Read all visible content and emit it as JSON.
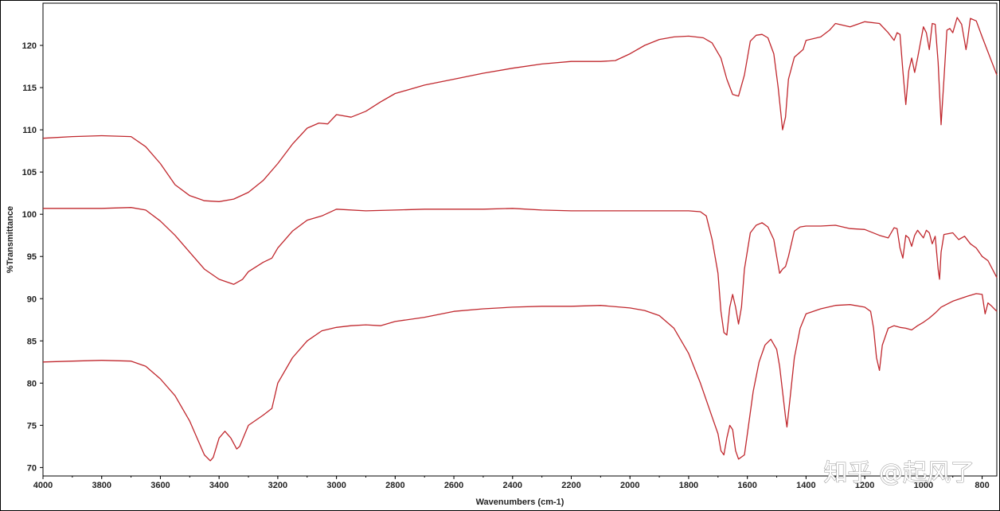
{
  "chart_data": {
    "type": "line",
    "title": "",
    "xlabel": "Wavenumbers (cm-1)",
    "ylabel": "%Transmittance",
    "xlim": [
      4000,
      750
    ],
    "ylim": [
      69,
      125
    ],
    "x_reversed": true,
    "grid": false,
    "legend": "none",
    "line_color": "#c0272d",
    "x_ticks": [
      "4000",
      "3800",
      "3600",
      "3400",
      "3200",
      "3000",
      "2800",
      "2600",
      "2400",
      "2200",
      "2000",
      "1800",
      "1600",
      "1400",
      "1200",
      "1000",
      "800"
    ],
    "y_ticks": [
      "70",
      "75",
      "80",
      "85",
      "90",
      "95",
      "100",
      "105",
      "110",
      "115",
      "120"
    ],
    "series": [
      {
        "points": [
          [
            4000,
            109
          ],
          [
            3900,
            109.2
          ],
          [
            3800,
            109.3
          ],
          [
            3700,
            109.2
          ],
          [
            3650,
            108
          ],
          [
            3600,
            106
          ],
          [
            3550,
            103.5
          ],
          [
            3500,
            102.2
          ],
          [
            3450,
            101.6
          ],
          [
            3400,
            101.5
          ],
          [
            3350,
            101.8
          ],
          [
            3300,
            102.6
          ],
          [
            3250,
            104
          ],
          [
            3200,
            106
          ],
          [
            3150,
            108.3
          ],
          [
            3100,
            110.2
          ],
          [
            3060,
            110.8
          ],
          [
            3030,
            110.7
          ],
          [
            3000,
            111.8
          ],
          [
            2950,
            111.5
          ],
          [
            2900,
            112.2
          ],
          [
            2850,
            113.3
          ],
          [
            2800,
            114.3
          ],
          [
            2700,
            115.3
          ],
          [
            2600,
            116
          ],
          [
            2500,
            116.7
          ],
          [
            2400,
            117.3
          ],
          [
            2300,
            117.8
          ],
          [
            2200,
            118.1
          ],
          [
            2100,
            118.1
          ],
          [
            2050,
            118.2
          ],
          [
            2000,
            119
          ],
          [
            1950,
            120
          ],
          [
            1900,
            120.7
          ],
          [
            1850,
            121
          ],
          [
            1800,
            121.1
          ],
          [
            1750,
            120.9
          ],
          [
            1720,
            120.3
          ],
          [
            1690,
            118.5
          ],
          [
            1670,
            116
          ],
          [
            1650,
            114.2
          ],
          [
            1630,
            114
          ],
          [
            1610,
            116.5
          ],
          [
            1590,
            120.5
          ],
          [
            1570,
            121.2
          ],
          [
            1550,
            121.3
          ],
          [
            1530,
            120.9
          ],
          [
            1510,
            119
          ],
          [
            1495,
            115
          ],
          [
            1480,
            110
          ],
          [
            1470,
            111.5
          ],
          [
            1460,
            116
          ],
          [
            1440,
            118.6
          ],
          [
            1420,
            119.2
          ],
          [
            1410,
            119.5
          ],
          [
            1400,
            120.6
          ],
          [
            1350,
            121
          ],
          [
            1320,
            121.8
          ],
          [
            1300,
            122.6
          ],
          [
            1250,
            122.2
          ],
          [
            1200,
            122.8
          ],
          [
            1150,
            122.6
          ],
          [
            1120,
            121.5
          ],
          [
            1100,
            120.6
          ],
          [
            1090,
            121.5
          ],
          [
            1080,
            121.3
          ],
          [
            1070,
            117
          ],
          [
            1060,
            113
          ],
          [
            1050,
            117
          ],
          [
            1040,
            118.5
          ],
          [
            1030,
            116.8
          ],
          [
            1020,
            118.5
          ],
          [
            1000,
            122.2
          ],
          [
            990,
            121.5
          ],
          [
            980,
            119.5
          ],
          [
            970,
            122.6
          ],
          [
            960,
            122.5
          ],
          [
            950,
            118
          ],
          [
            940,
            110.6
          ],
          [
            930,
            116
          ],
          [
            920,
            121.8
          ],
          [
            910,
            122
          ],
          [
            900,
            121.5
          ],
          [
            885,
            123.3
          ],
          [
            870,
            122.5
          ],
          [
            860,
            120.5
          ],
          [
            855,
            119.5
          ],
          [
            850,
            120.5
          ],
          [
            840,
            123.2
          ],
          [
            820,
            122.9
          ],
          [
            800,
            121
          ],
          [
            750,
            116.5
          ]
        ]
      },
      {
        "points": [
          [
            4000,
            100.7
          ],
          [
            3900,
            100.7
          ],
          [
            3800,
            100.7
          ],
          [
            3700,
            100.8
          ],
          [
            3650,
            100.5
          ],
          [
            3600,
            99.2
          ],
          [
            3550,
            97.5
          ],
          [
            3500,
            95.5
          ],
          [
            3450,
            93.5
          ],
          [
            3400,
            92.3
          ],
          [
            3350,
            91.7
          ],
          [
            3320,
            92.3
          ],
          [
            3300,
            93.2
          ],
          [
            3250,
            94.3
          ],
          [
            3220,
            94.8
          ],
          [
            3200,
            96
          ],
          [
            3150,
            98
          ],
          [
            3100,
            99.3
          ],
          [
            3050,
            99.8
          ],
          [
            3000,
            100.6
          ],
          [
            2900,
            100.4
          ],
          [
            2800,
            100.5
          ],
          [
            2700,
            100.6
          ],
          [
            2600,
            100.6
          ],
          [
            2500,
            100.6
          ],
          [
            2400,
            100.7
          ],
          [
            2300,
            100.5
          ],
          [
            2200,
            100.4
          ],
          [
            2100,
            100.4
          ],
          [
            2000,
            100.4
          ],
          [
            1900,
            100.4
          ],
          [
            1800,
            100.4
          ],
          [
            1760,
            100.3
          ],
          [
            1740,
            99.8
          ],
          [
            1720,
            97
          ],
          [
            1700,
            93
          ],
          [
            1690,
            88.5
          ],
          [
            1680,
            86
          ],
          [
            1670,
            85.7
          ],
          [
            1660,
            89
          ],
          [
            1650,
            90.5
          ],
          [
            1640,
            89
          ],
          [
            1630,
            87
          ],
          [
            1620,
            89
          ],
          [
            1610,
            93.5
          ],
          [
            1590,
            97.8
          ],
          [
            1570,
            98.7
          ],
          [
            1550,
            99
          ],
          [
            1530,
            98.5
          ],
          [
            1510,
            97
          ],
          [
            1500,
            95
          ],
          [
            1490,
            93
          ],
          [
            1480,
            93.5
          ],
          [
            1470,
            93.8
          ],
          [
            1460,
            95
          ],
          [
            1440,
            98
          ],
          [
            1420,
            98.5
          ],
          [
            1400,
            98.6
          ],
          [
            1350,
            98.6
          ],
          [
            1300,
            98.7
          ],
          [
            1250,
            98.3
          ],
          [
            1200,
            98.2
          ],
          [
            1150,
            97.5
          ],
          [
            1120,
            97.2
          ],
          [
            1100,
            98.4
          ],
          [
            1090,
            98.3
          ],
          [
            1080,
            96
          ],
          [
            1070,
            94.8
          ],
          [
            1060,
            97.5
          ],
          [
            1050,
            97.2
          ],
          [
            1040,
            96.2
          ],
          [
            1030,
            97.5
          ],
          [
            1020,
            98.1
          ],
          [
            1000,
            97.2
          ],
          [
            990,
            98.1
          ],
          [
            980,
            97.8
          ],
          [
            970,
            96.5
          ],
          [
            960,
            97.4
          ],
          [
            950,
            93.5
          ],
          [
            945,
            92.3
          ],
          [
            940,
            95.5
          ],
          [
            930,
            97.6
          ],
          [
            900,
            97.8
          ],
          [
            880,
            97
          ],
          [
            860,
            97.4
          ],
          [
            840,
            96.5
          ],
          [
            820,
            96
          ],
          [
            800,
            95
          ],
          [
            780,
            94.5
          ],
          [
            750,
            92.5
          ]
        ]
      },
      {
        "points": [
          [
            4000,
            82.5
          ],
          [
            3900,
            82.6
          ],
          [
            3800,
            82.7
          ],
          [
            3700,
            82.6
          ],
          [
            3650,
            82
          ],
          [
            3600,
            80.5
          ],
          [
            3550,
            78.5
          ],
          [
            3500,
            75.5
          ],
          [
            3450,
            71.5
          ],
          [
            3430,
            70.8
          ],
          [
            3420,
            71.2
          ],
          [
            3400,
            73.5
          ],
          [
            3380,
            74.3
          ],
          [
            3360,
            73.5
          ],
          [
            3340,
            72.2
          ],
          [
            3330,
            72.5
          ],
          [
            3300,
            75
          ],
          [
            3250,
            76.2
          ],
          [
            3220,
            77
          ],
          [
            3200,
            80
          ],
          [
            3150,
            83
          ],
          [
            3100,
            85
          ],
          [
            3050,
            86.2
          ],
          [
            3000,
            86.6
          ],
          [
            2950,
            86.8
          ],
          [
            2900,
            86.9
          ],
          [
            2850,
            86.8
          ],
          [
            2800,
            87.3
          ],
          [
            2700,
            87.8
          ],
          [
            2600,
            88.5
          ],
          [
            2500,
            88.8
          ],
          [
            2400,
            89
          ],
          [
            2300,
            89.1
          ],
          [
            2200,
            89.1
          ],
          [
            2100,
            89.2
          ],
          [
            2000,
            88.9
          ],
          [
            1950,
            88.6
          ],
          [
            1900,
            88
          ],
          [
            1850,
            86.5
          ],
          [
            1800,
            83.5
          ],
          [
            1760,
            80
          ],
          [
            1720,
            76
          ],
          [
            1700,
            74
          ],
          [
            1690,
            72
          ],
          [
            1680,
            71.5
          ],
          [
            1670,
            73.5
          ],
          [
            1660,
            75
          ],
          [
            1650,
            74.5
          ],
          [
            1640,
            72
          ],
          [
            1630,
            71
          ],
          [
            1610,
            71.5
          ],
          [
            1600,
            74
          ],
          [
            1580,
            79
          ],
          [
            1560,
            82.5
          ],
          [
            1540,
            84.5
          ],
          [
            1520,
            85.2
          ],
          [
            1500,
            84
          ],
          [
            1490,
            82
          ],
          [
            1480,
            79
          ],
          [
            1470,
            76
          ],
          [
            1465,
            74.8
          ],
          [
            1455,
            78
          ],
          [
            1440,
            83
          ],
          [
            1420,
            86.5
          ],
          [
            1400,
            88.2
          ],
          [
            1350,
            88.8
          ],
          [
            1300,
            89.2
          ],
          [
            1250,
            89.3
          ],
          [
            1200,
            89
          ],
          [
            1180,
            88.5
          ],
          [
            1170,
            86.5
          ],
          [
            1160,
            83
          ],
          [
            1150,
            81.5
          ],
          [
            1140,
            84.5
          ],
          [
            1120,
            86.5
          ],
          [
            1100,
            86.8
          ],
          [
            1080,
            86.6
          ],
          [
            1060,
            86.5
          ],
          [
            1040,
            86.3
          ],
          [
            1020,
            86.8
          ],
          [
            1000,
            87.2
          ],
          [
            980,
            87.7
          ],
          [
            960,
            88.3
          ],
          [
            940,
            89
          ],
          [
            900,
            89.7
          ],
          [
            850,
            90.3
          ],
          [
            820,
            90.6
          ],
          [
            800,
            90.5
          ],
          [
            790,
            88.2
          ],
          [
            780,
            89.5
          ],
          [
            770,
            89.2
          ],
          [
            750,
            88.5
          ]
        ]
      }
    ],
    "watermark": "知乎 @起风了"
  }
}
